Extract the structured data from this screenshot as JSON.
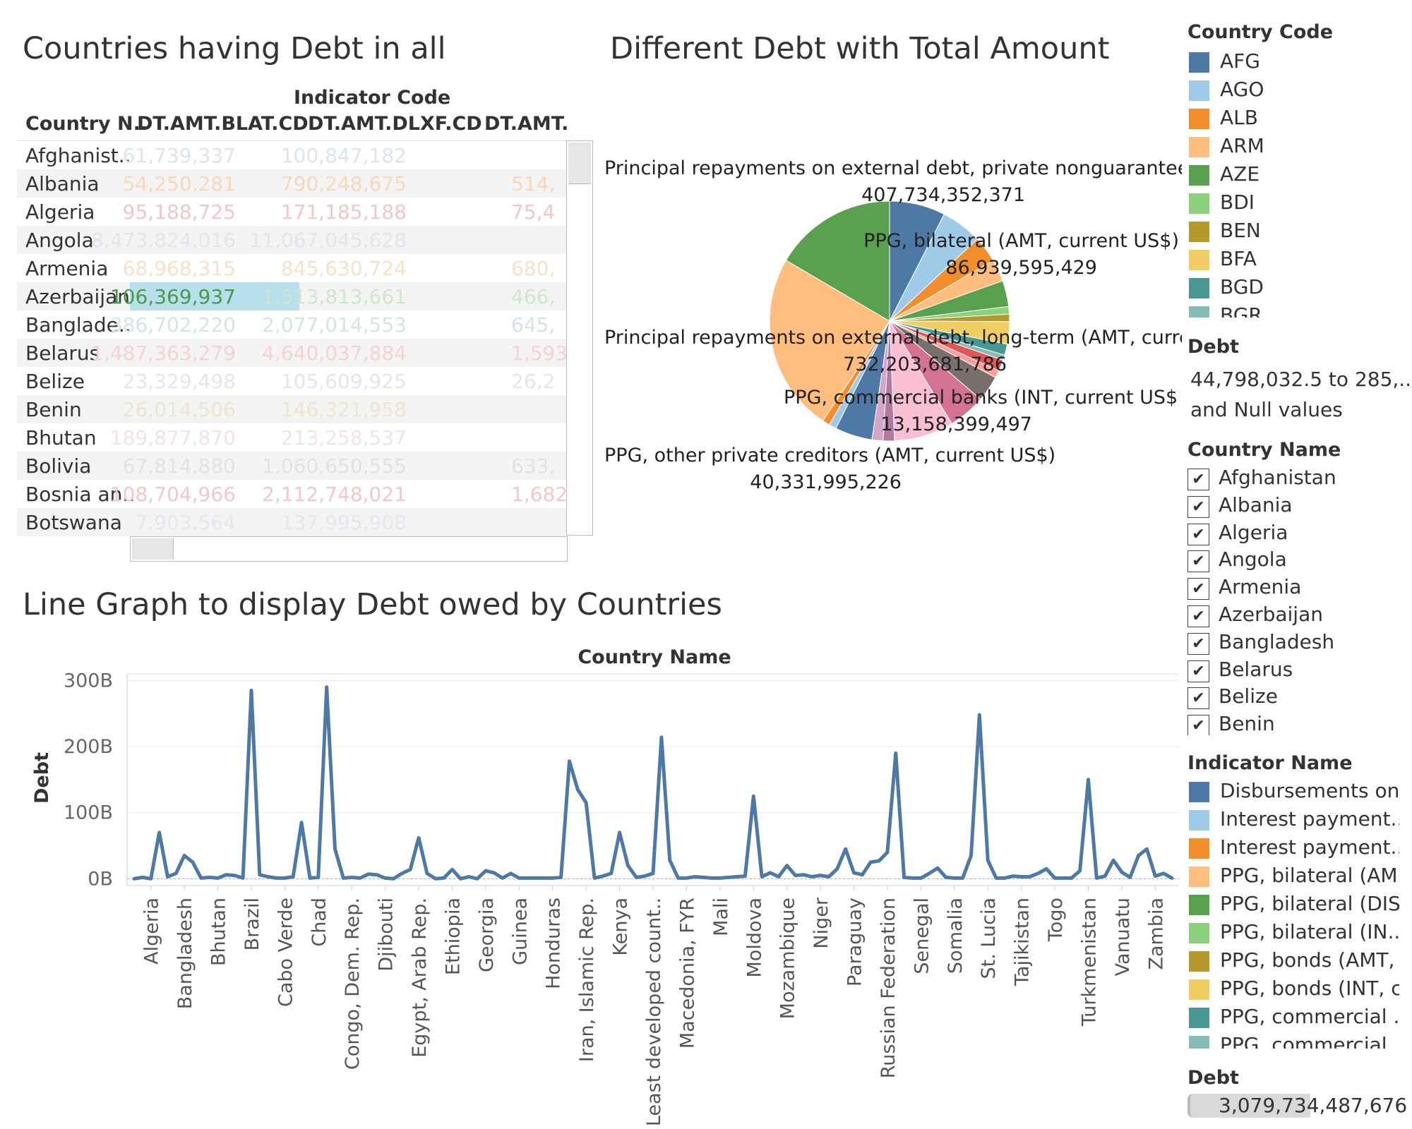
{
  "titles": {
    "crosstab": "Countries having Debt in all",
    "pie": "Different Debt with Total Amount",
    "line": "Line Graph to  display Debt owed by Countries"
  },
  "crosstab": {
    "group_header": "Indicator Code",
    "columns": [
      "Country N..",
      "DT.AMT.BLAT.CD",
      "DT.AMT.DLXF.CD",
      "DT.AMT."
    ],
    "rows": [
      {
        "name": "Afghanist..",
        "v1": "61,739,337",
        "v2": "100,847,182",
        "v3": "",
        "c1": "#dde4ee",
        "c2": "#dde4ee",
        "c3": "#dde4ee"
      },
      {
        "name": "Albania",
        "v1": "54,250,281",
        "v2": "790,248,675",
        "v3": "514,",
        "c1": "#f6d8bc",
        "c2": "#f6d8bc",
        "c3": "#f6d8bc"
      },
      {
        "name": "Algeria",
        "v1": "95,188,725",
        "v2": "171,185,188",
        "v3": "75,4",
        "c1": "#f1c7c7",
        "c2": "#f1c7c7",
        "c3": "#f1c7c7"
      },
      {
        "name": "Angola",
        "v1": "8,473,824,016",
        "v2": "11,067,045,628",
        "v3": "",
        "c1": "#e1e6ec",
        "c2": "#e1e6ec",
        "c3": "#e1e6ec"
      },
      {
        "name": "Armenia",
        "v1": "68,968,315",
        "v2": "845,630,724",
        "v3": "680,",
        "c1": "#f6e1ca",
        "c2": "#f6e1ca",
        "c3": "#f6e1ca"
      },
      {
        "name": "Azerbaijan",
        "v1": "106,369,937",
        "v2": "1,513,813,661",
        "v3": "466,",
        "c1": "#4a9a4a",
        "c2": "#cfe5cf",
        "c3": "#cfe5cf"
      },
      {
        "name": "Banglade..",
        "v1": "386,702,220",
        "v2": "2,077,014,553",
        "v3": "645,",
        "c1": "#d3e3e9",
        "c2": "#d3e3e9",
        "c3": "#d3e3e9"
      },
      {
        "name": "Belarus",
        "v1": "1,487,363,279",
        "v2": "4,640,037,884",
        "v3": "1,593,",
        "c1": "#f3d3d3",
        "c2": "#f3d3d3",
        "c3": "#f3d3d3"
      },
      {
        "name": "Belize",
        "v1": "23,329,498",
        "v2": "105,609,925",
        "v3": "26,2",
        "c1": "#e6e6e6",
        "c2": "#e6e6e6",
        "c3": "#e6e6e6"
      },
      {
        "name": "Benin",
        "v1": "26,014,506",
        "v2": "146,321,958",
        "v3": "",
        "c1": "#ece6d0",
        "c2": "#ece6d0",
        "c3": "#ece6d0"
      },
      {
        "name": "Bhutan",
        "v1": "189,877,870",
        "v2": "213,258,537",
        "v3": "",
        "c1": "#f3e3e8",
        "c2": "#f3e3e8",
        "c3": "#f3e3e8"
      },
      {
        "name": "Bolivia",
        "v1": "67,814,880",
        "v2": "1,060,650,555",
        "v3": "633,",
        "c1": "#e2e2e2",
        "c2": "#e2e2e2",
        "c3": "#e2e2e2"
      },
      {
        "name": "Bosnia an..",
        "v1": "108,704,966",
        "v2": "2,112,748,021",
        "v3": "1,682,",
        "c1": "#f2c8ce",
        "c2": "#f2c8ce",
        "c3": "#f2c8ce"
      },
      {
        "name": "Botswana",
        "v1": "7,903,564",
        "v2": "137,995,908",
        "v3": "",
        "c1": "#e3e8ee",
        "c2": "#e3e8ee",
        "c3": "#e3e8ee"
      }
    ]
  },
  "pie_labels": [
    {
      "name": "Principal repayments on external debt, private nonguarantee",
      "value": "407,734,352,371"
    },
    {
      "name": "PPG, bilateral (AMT, current US$)",
      "value": "86,939,595,429"
    },
    {
      "name": "Principal repayments on external debt, long-term (AMT, curre",
      "value": "732,203,681,786"
    },
    {
      "name": "PPG, commercial banks (INT, current US$)",
      "value": "13,158,399,497"
    },
    {
      "name": "PPG, other private creditors (AMT, current US$)",
      "value": "40,331,995,226"
    }
  ],
  "legend_country_code": {
    "title": "Country Code",
    "items": [
      {
        "label": "AFG",
        "color": "#4e79a7"
      },
      {
        "label": "AGO",
        "color": "#a0cbe8"
      },
      {
        "label": "ALB",
        "color": "#f28e2b"
      },
      {
        "label": "ARM",
        "color": "#ffbe7d"
      },
      {
        "label": "AZE",
        "color": "#59a14f"
      },
      {
        "label": "BDI",
        "color": "#8cd17d"
      },
      {
        "label": "BEN",
        "color": "#b6992d"
      },
      {
        "label": "BFA",
        "color": "#f1ce63"
      },
      {
        "label": "BGD",
        "color": "#499894"
      },
      {
        "label": "BGR",
        "color": "#86bcb6"
      }
    ]
  },
  "debt_filter": {
    "title": "Debt",
    "line1": "44,798,032.5 to 285,..",
    "line2": "and Null values"
  },
  "country_name_filter": {
    "title": "Country Name",
    "check": "✔",
    "items": [
      "Afghanistan",
      "Albania",
      "Algeria",
      "Angola",
      "Armenia",
      "Azerbaijan",
      "Bangladesh",
      "Belarus",
      "Belize",
      "Benin"
    ]
  },
  "legend_indicator": {
    "title": "Indicator Name",
    "items": [
      {
        "label": "Disbursements on..",
        "color": "#4e79a7"
      },
      {
        "label": "Interest payment..",
        "color": "#a0cbe8"
      },
      {
        "label": "Interest payment..",
        "color": "#f28e2b"
      },
      {
        "label": "PPG, bilateral (AM..",
        "color": "#ffbe7d"
      },
      {
        "label": "PPG, bilateral (DIS..",
        "color": "#59a14f"
      },
      {
        "label": "PPG, bilateral (IN..",
        "color": "#8cd17d"
      },
      {
        "label": "PPG, bonds (AMT, ..",
        "color": "#b6992d"
      },
      {
        "label": "PPG, bonds (INT, c..",
        "color": "#f1ce63"
      },
      {
        "label": "PPG, commercial ..",
        "color": "#499894"
      },
      {
        "label": "PPG, commercial ..",
        "color": "#86bcb6"
      }
    ]
  },
  "debt_size": {
    "title": "Debt",
    "value": "3,079,734,487,676"
  },
  "chart_data": [
    {
      "type": "pie",
      "title": "Different Debt with Total Amount",
      "slices": [
        {
          "color": "#4e79a7",
          "value": 7.5
        },
        {
          "color": "#a0cbe8",
          "value": 5.5
        },
        {
          "color": "#f28e2b",
          "value": 3.5
        },
        {
          "color": "#ffbe7d",
          "value": 3
        },
        {
          "color": "#59a14f",
          "value": 3.5
        },
        {
          "color": "#8cd17d",
          "value": 1
        },
        {
          "color": "#b6992d",
          "value": 1
        },
        {
          "color": "#f1ce63",
          "value": 3
        },
        {
          "color": "#499894",
          "value": 1.5
        },
        {
          "color": "#86bcb6",
          "value": 0.7
        },
        {
          "color": "#e15759",
          "value": 1.5
        },
        {
          "color": "#ff9d9a",
          "value": 1
        },
        {
          "color": "#79706e",
          "value": 3.5
        },
        {
          "color": "#d37295",
          "value": 5
        },
        {
          "color": "#fabfd2",
          "value": 8
        },
        {
          "color": "#b07aa1",
          "value": 1.5
        },
        {
          "color": "#d4a6c8",
          "value": 1.5
        },
        {
          "color": "#4e79a7",
          "value": 5
        },
        {
          "color": "#a0cbe8",
          "value": 1
        },
        {
          "color": "#f28e2b",
          "value": 1
        },
        {
          "color": "#ffbe7d",
          "value": 24
        },
        {
          "color": "#59a14f",
          "value": 16.5
        }
      ]
    },
    {
      "type": "line",
      "title": "Country Name",
      "xlabel": "Country Name",
      "ylabel": "Debt",
      "ylim": [
        -5,
        310
      ],
      "yticks": [
        0,
        100,
        200,
        300
      ],
      "ytick_labels": [
        "0B",
        "100B",
        "200B",
        "300B"
      ],
      "xtick_labels": [
        "Algeria",
        "Bangladesh",
        "Bhutan",
        "Brazil",
        "Cabo Verde",
        "Chad",
        "Congo, Dem. Rep.",
        "Djibouti",
        "Egypt, Arab Rep.",
        "Ethiopia",
        "Georgia",
        "Guinea",
        "Honduras",
        "Iran, Islamic Rep.",
        "Kenya",
        "Least developed count..",
        "Macedonia, FYR",
        "Mali",
        "Moldova",
        "Mozambique",
        "Niger",
        "Paraguay",
        "Russian Federation",
        "Senegal",
        "Somalia",
        "St. Lucia",
        "Tajikistan",
        "Togo",
        "Turkmenistan",
        "Vanuatu",
        "Zambia"
      ],
      "xtick_index": [
        2,
        6,
        10,
        14,
        18,
        22,
        26,
        30,
        34,
        38,
        42,
        46,
        50,
        54,
        58,
        62,
        66,
        70,
        74,
        78,
        82,
        86,
        90,
        94,
        98,
        102,
        106,
        110,
        114,
        118,
        122
      ],
      "series": [
        {
          "color": "#4e79a7",
          "values": [
            0,
            2,
            0,
            70,
            3,
            8,
            35,
            25,
            1,
            2,
            1,
            6,
            5,
            1,
            285,
            6,
            3,
            1,
            1,
            3,
            85,
            1,
            2,
            290,
            45,
            1,
            2,
            1,
            7,
            6,
            1,
            0,
            8,
            14,
            62,
            8,
            0,
            1,
            14,
            0,
            3,
            0,
            12,
            9,
            1,
            8,
            1,
            1,
            1,
            1,
            1,
            2,
            178,
            135,
            115,
            1,
            4,
            8,
            70,
            20,
            2,
            4,
            8,
            214,
            28,
            1,
            1,
            3,
            2,
            1,
            1,
            2,
            3,
            4,
            125,
            3,
            9,
            3,
            20,
            5,
            6,
            3,
            5,
            3,
            15,
            45,
            9,
            6,
            25,
            27,
            40,
            190,
            2,
            1,
            1,
            8,
            16,
            2,
            1,
            1,
            35,
            248,
            28,
            1,
            1,
            4,
            3,
            3,
            8,
            15,
            1,
            1,
            1,
            12,
            150,
            1,
            4,
            28,
            10,
            2,
            35,
            45,
            4,
            8,
            1
          ]
        }
      ]
    }
  ]
}
